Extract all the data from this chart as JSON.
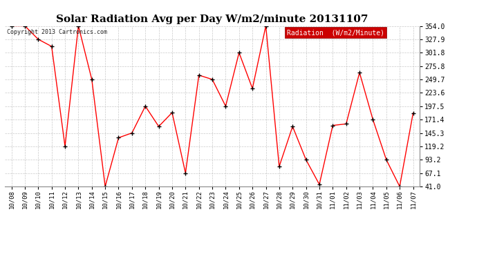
{
  "title": "Solar Radiation Avg per Day W/m2/minute 20131107",
  "copyright": "Copyright 2013 Cartronics.com",
  "legend_label": "Radiation  (W/m2/Minute)",
  "dates": [
    "10/08",
    "10/09",
    "10/10",
    "10/11",
    "10/12",
    "10/13",
    "10/14",
    "10/15",
    "10/16",
    "10/17",
    "10/18",
    "10/19",
    "10/20",
    "10/21",
    "10/22",
    "10/23",
    "10/24",
    "10/25",
    "10/26",
    "10/27",
    "10/28",
    "10/29",
    "10/30",
    "10/31",
    "11/01",
    "11/02",
    "11/03",
    "11/04",
    "11/05",
    "11/06",
    "11/07"
  ],
  "values": [
    354.0,
    354.0,
    327.9,
    314.0,
    119.2,
    354.0,
    249.7,
    41.0,
    136.0,
    145.3,
    197.5,
    158.0,
    185.0,
    67.1,
    258.0,
    249.7,
    197.5,
    301.8,
    232.0,
    354.0,
    80.0,
    158.0,
    93.2,
    45.0,
    160.0,
    163.0,
    263.0,
    171.4,
    93.2,
    41.0,
    184.0
  ],
  "ylim": [
    41.0,
    354.0
  ],
  "yticks": [
    41.0,
    67.1,
    93.2,
    119.2,
    145.3,
    171.4,
    197.5,
    223.6,
    249.7,
    275.8,
    301.8,
    327.9,
    354.0
  ],
  "line_color": "#ff0000",
  "marker_color": "#000000",
  "bg_color": "#ffffff",
  "grid_color": "#bbbbbb",
  "title_fontsize": 11,
  "legend_bg": "#cc0000",
  "legend_fg": "#ffffff"
}
